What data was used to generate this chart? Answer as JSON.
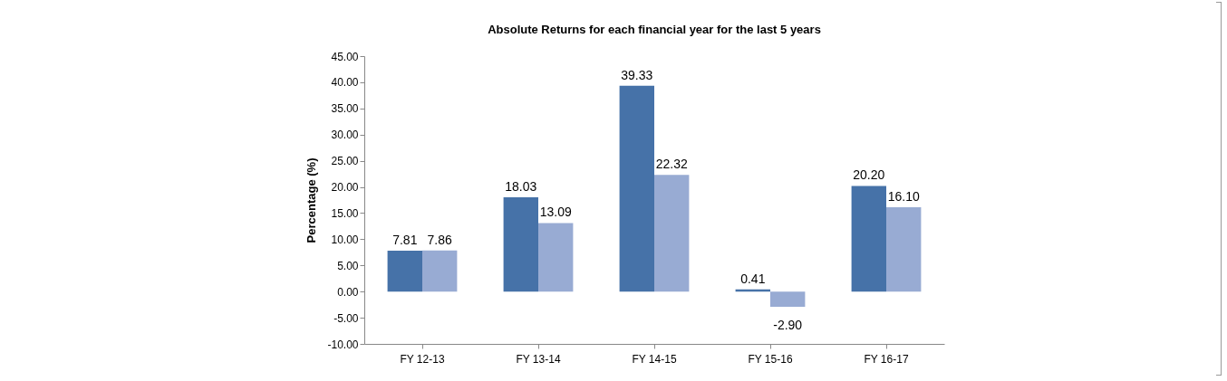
{
  "chart_data": {
    "type": "bar",
    "title": "Absolute Returns for each financial  year for the last 5 years",
    "ylabel": "Percentage (%)",
    "categories": [
      "FY 12-13",
      "FY 13-14",
      "FY 14-15",
      "FY 15-16",
      "FY 16-17"
    ],
    "series": [
      {
        "color": "#4672a8",
        "values": [
          7.81,
          18.03,
          39.33,
          0.41,
          20.2
        ],
        "value_labels": [
          "7.81",
          "18.03",
          "39.33",
          "0.41",
          "20.20"
        ]
      },
      {
        "color": "#98abd3",
        "values": [
          7.86,
          13.09,
          22.32,
          -2.9,
          16.1
        ],
        "value_labels": [
          "7.86",
          "13.09",
          "22.32",
          "-2.90",
          "16.10"
        ]
      }
    ],
    "ylim": [
      -10,
      45
    ],
    "yticks": [
      {
        "value": -10,
        "label": "-10.00"
      },
      {
        "value": -5,
        "label": "-5.00"
      },
      {
        "value": 0,
        "label": "0.00"
      },
      {
        "value": 5,
        "label": "5.00"
      },
      {
        "value": 10,
        "label": "10.00"
      },
      {
        "value": 15,
        "label": "15.00"
      },
      {
        "value": 20,
        "label": "20.00"
      },
      {
        "value": 25,
        "label": "25.00"
      },
      {
        "value": 30,
        "label": "30.00"
      },
      {
        "value": 35,
        "label": "35.00"
      },
      {
        "value": 40,
        "label": "40.00"
      },
      {
        "value": 45,
        "label": "45.00"
      }
    ],
    "grid": false,
    "legend": false
  }
}
